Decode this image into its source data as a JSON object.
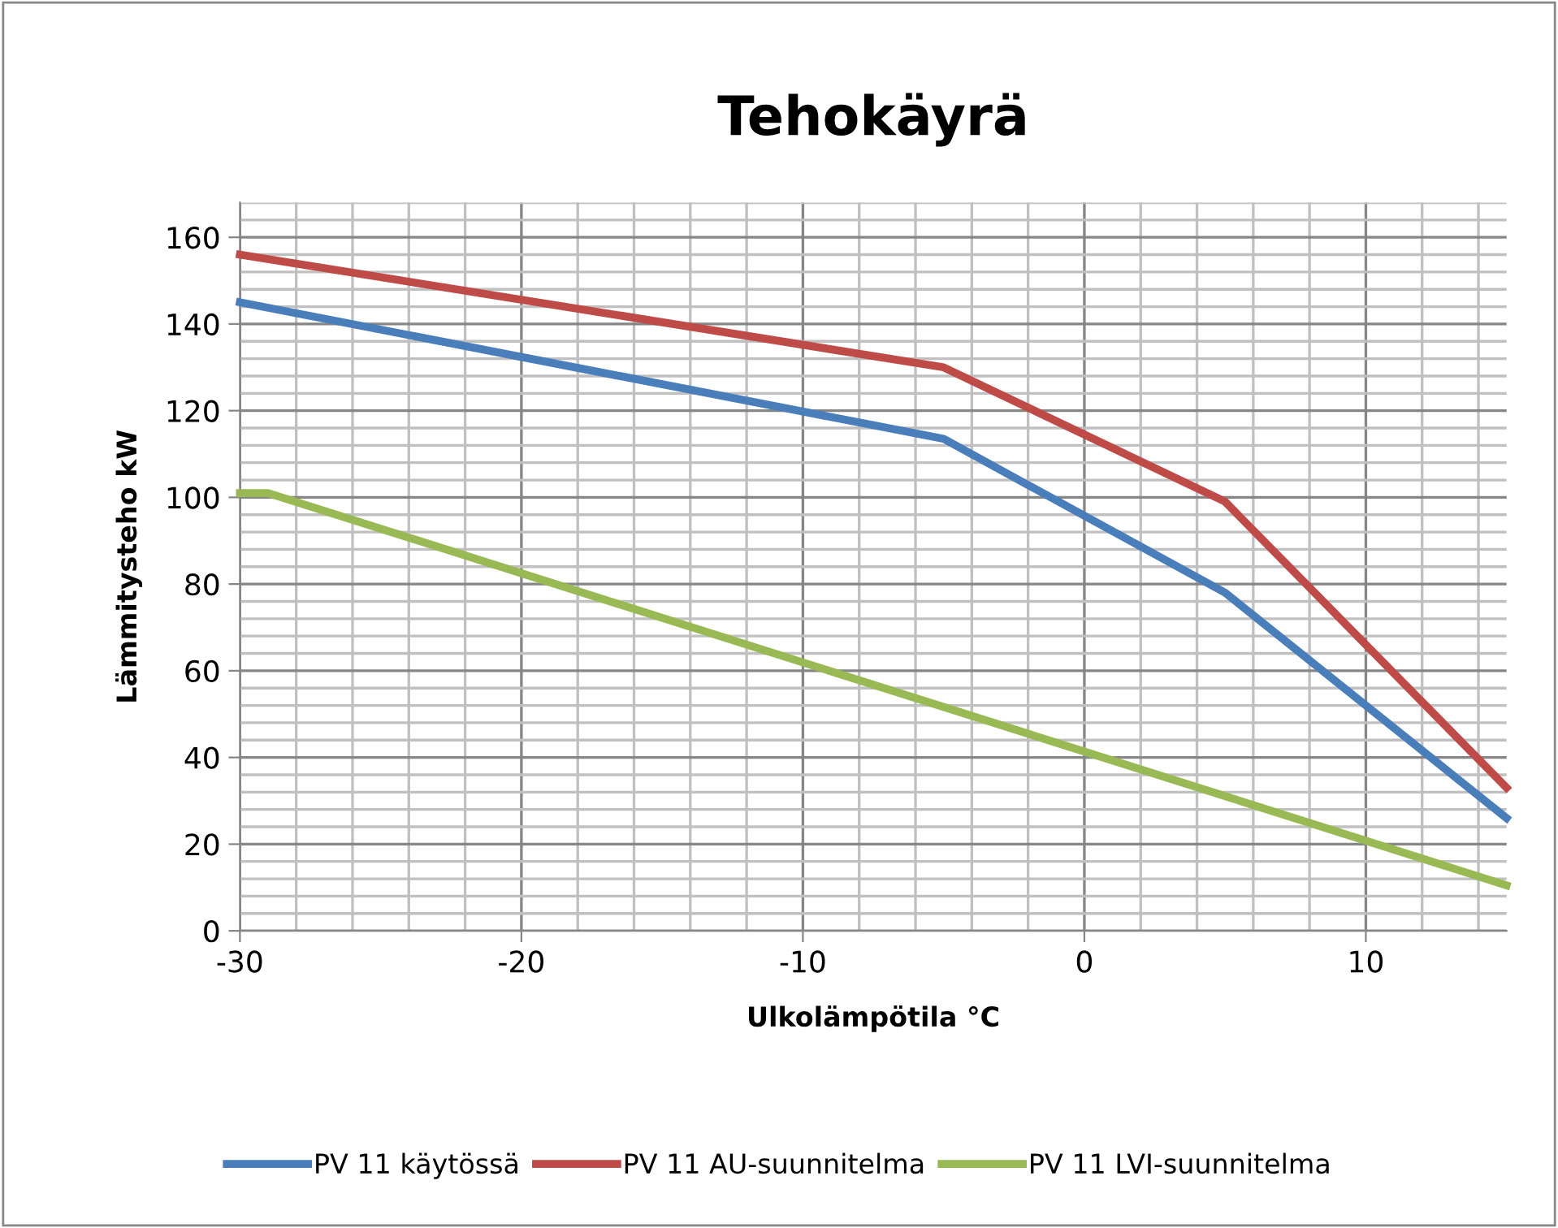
{
  "chart_data": {
    "type": "line",
    "title": "Tehokäyrä",
    "xlabel": "Ulkolämpötila °C",
    "ylabel": "Lämmitysteho kW",
    "xlim": [
      -30,
      15
    ],
    "ylim": [
      0,
      168
    ],
    "xticks": [
      -30,
      -20,
      -10,
      0,
      10
    ],
    "yticks": [
      0,
      20,
      40,
      60,
      80,
      100,
      120,
      140,
      160
    ],
    "grid": true,
    "legend": "bottom",
    "marker": "none",
    "line_style": "solid",
    "series": [
      {
        "name": "PV 11 käytössä",
        "color": "#4a7ebb",
        "x": [
          -30,
          -5,
          5,
          15
        ],
        "values": [
          145,
          113.5,
          78,
          26
        ]
      },
      {
        "name": "PV 11 AU-suunnitelma",
        "color": "#be4b48",
        "x": [
          -30,
          -5,
          5,
          15
        ],
        "values": [
          156,
          130,
          99,
          33
        ]
      },
      {
        "name": "PV 11 LVI-suunnitelma",
        "color": "#98b954",
        "x": [
          -30,
          -29,
          15
        ],
        "values": [
          101,
          101,
          10.5
        ]
      }
    ]
  }
}
